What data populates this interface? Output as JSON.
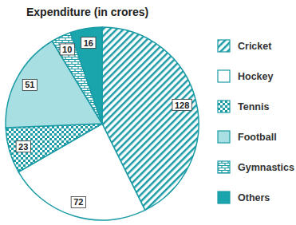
{
  "chart_data": {
    "type": "pie",
    "title": "Expenditure (in crores)",
    "categories": [
      "Cricket",
      "Hockey",
      "Tennis",
      "Football",
      "Gymnastics",
      "Others"
    ],
    "values": [
      128,
      72,
      23,
      51,
      10,
      16
    ],
    "colors": [
      "#1a9ba5",
      "#ffffff",
      "#1a9ba5",
      "#a8dfe2",
      "#1a9ba5",
      "#19a5ab"
    ],
    "data_labels": true,
    "legend": "right"
  }
}
